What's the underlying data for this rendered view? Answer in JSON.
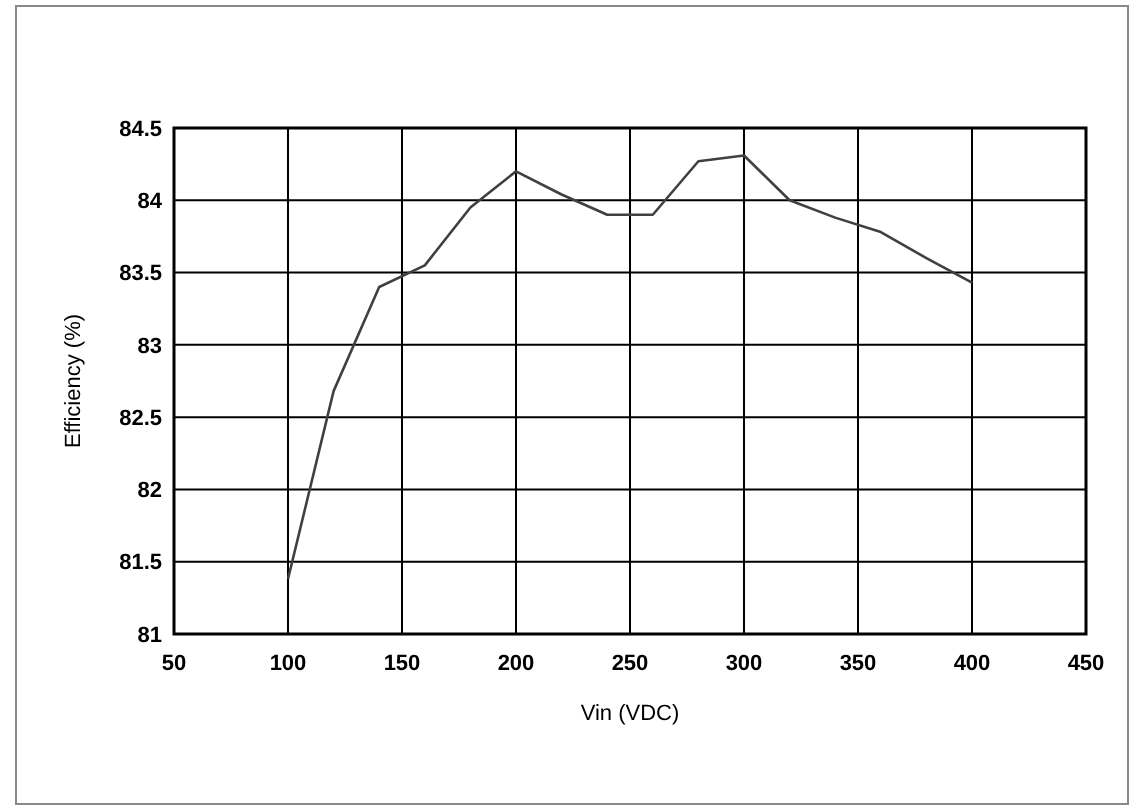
{
  "chart_data": {
    "type": "line",
    "xlabel": "Vin (VDC)",
    "ylabel": "Efficiency (%)",
    "xlim": [
      50,
      450
    ],
    "xticks": [
      50,
      100,
      150,
      200,
      250,
      300,
      350,
      400,
      450
    ],
    "ylim": [
      81,
      84.5
    ],
    "yticks": [
      81,
      81.5,
      82,
      82.5,
      83,
      83.5,
      84,
      84.5
    ],
    "grid": true,
    "marker": "none",
    "line_style": "solid",
    "series": [
      {
        "color": "#404040",
        "x": [
          100,
          120,
          140,
          160,
          180,
          200,
          220,
          240,
          260,
          280,
          300,
          320,
          340,
          360,
          380,
          400
        ],
        "values": [
          81.38,
          82.68,
          83.4,
          83.55,
          83.95,
          84.2,
          84.04,
          83.9,
          83.9,
          84.27,
          84.31,
          84.0,
          83.88,
          83.78,
          83.6,
          83.43
        ]
      }
    ]
  }
}
